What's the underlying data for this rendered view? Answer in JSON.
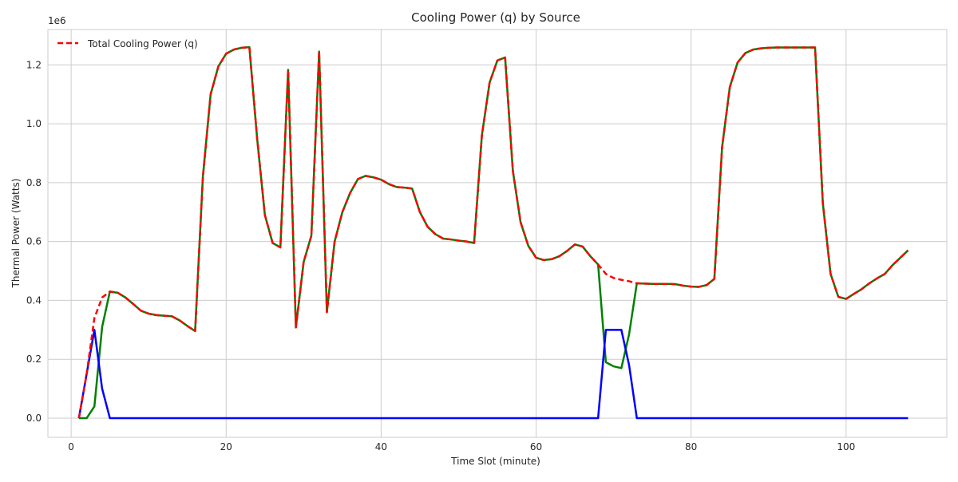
{
  "chart_data": {
    "type": "line",
    "title": "Cooling Power (q) by Source",
    "xlabel": "Time Slot (minute)",
    "ylabel": "Thermal Power (Watts)",
    "y_offset_label": "1e6",
    "xlim": [
      -3,
      113
    ],
    "ylim": [
      -65000,
      1320000
    ],
    "x_ticks": [
      0,
      20,
      40,
      60,
      80,
      100
    ],
    "x_tick_labels": [
      "0",
      "20",
      "40",
      "60",
      "80",
      "100"
    ],
    "y_ticks": [
      0,
      200000,
      400000,
      600000,
      800000,
      1000000,
      1200000
    ],
    "y_tick_labels": [
      "0.0",
      "0.2",
      "0.4",
      "0.6",
      "0.8",
      "1.0",
      "1.2"
    ],
    "grid": true,
    "legend_position": "top-left",
    "x": [
      1,
      2,
      3,
      4,
      5,
      6,
      7,
      8,
      9,
      10,
      11,
      12,
      13,
      14,
      15,
      16,
      17,
      18,
      19,
      20,
      21,
      22,
      23,
      24,
      25,
      26,
      27,
      28,
      29,
      30,
      31,
      32,
      33,
      34,
      35,
      36,
      37,
      38,
      39,
      40,
      41,
      42,
      43,
      44,
      45,
      46,
      47,
      48,
      49,
      50,
      51,
      52,
      53,
      54,
      55,
      56,
      57,
      58,
      59,
      60,
      61,
      62,
      63,
      64,
      65,
      66,
      67,
      68,
      69,
      70,
      71,
      72,
      73,
      74,
      75,
      76,
      77,
      78,
      79,
      80,
      81,
      82,
      83,
      84,
      85,
      86,
      87,
      88,
      89,
      90,
      91,
      92,
      93,
      94,
      95,
      96,
      97,
      98,
      99,
      100,
      101,
      102,
      103,
      104,
      105,
      106,
      107,
      108
    ],
    "series": [
      {
        "name": "",
        "color": "#008000",
        "style": "solid",
        "values": [
          0,
          0,
          40000,
          310000,
          430000,
          426000,
          410000,
          388000,
          365000,
          355000,
          350000,
          348000,
          346000,
          332000,
          313000,
          296000,
          820000,
          1100000,
          1195000,
          1238000,
          1252000,
          1258000,
          1260000,
          950000,
          690000,
          595000,
          580000,
          1183000,
          308000,
          530000,
          620000,
          1245000,
          360000,
          600000,
          700000,
          765000,
          812000,
          823000,
          818000,
          810000,
          795000,
          785000,
          783000,
          780000,
          700000,
          650000,
          625000,
          610000,
          607000,
          603000,
          600000,
          595000,
          960000,
          1140000,
          1215000,
          1225000,
          840000,
          665000,
          585000,
          545000,
          537000,
          540000,
          550000,
          568000,
          590000,
          583000,
          550000,
          522000,
          190000,
          176000,
          170000,
          285000,
          458000,
          457000,
          456000,
          456000,
          456000,
          455000,
          450000,
          447000,
          446000,
          452000,
          473000,
          920000,
          1125000,
          1208000,
          1240000,
          1252000,
          1256000,
          1258000,
          1259000,
          1259000,
          1259000,
          1259000,
          1259000,
          1259000,
          730000,
          490000,
          412000,
          405000,
          422000,
          438000,
          458000,
          475000,
          490000,
          520000,
          545000,
          570000
        ]
      },
      {
        "name": "",
        "color": "#0000ff",
        "style": "solid",
        "values": [
          0,
          150000,
          300000,
          100000,
          0,
          0,
          0,
          0,
          0,
          0,
          0,
          0,
          0,
          0,
          0,
          0,
          0,
          0,
          0,
          0,
          0,
          0,
          0,
          0,
          0,
          0,
          0,
          0,
          0,
          0,
          0,
          0,
          0,
          0,
          0,
          0,
          0,
          0,
          0,
          0,
          0,
          0,
          0,
          0,
          0,
          0,
          0,
          0,
          0,
          0,
          0,
          0,
          0,
          0,
          0,
          0,
          0,
          0,
          0,
          0,
          0,
          0,
          0,
          0,
          0,
          0,
          0,
          0,
          300000,
          300000,
          300000,
          180000,
          0,
          0,
          0,
          0,
          0,
          0,
          0,
          0,
          0,
          0,
          0,
          0,
          0,
          0,
          0,
          0,
          0,
          0,
          0,
          0,
          0,
          0,
          0,
          0,
          0,
          0,
          0,
          0,
          0,
          0,
          0,
          0,
          0,
          0,
          0,
          0
        ]
      },
      {
        "name": "Total Cooling Power (q)",
        "color": "#ff0000",
        "style": "dashed",
        "values": [
          0,
          150000,
          340000,
          410000,
          430000,
          426000,
          410000,
          388000,
          365000,
          355000,
          350000,
          348000,
          346000,
          332000,
          313000,
          296000,
          820000,
          1100000,
          1195000,
          1238000,
          1252000,
          1258000,
          1260000,
          950000,
          690000,
          595000,
          580000,
          1183000,
          308000,
          530000,
          620000,
          1245000,
          360000,
          600000,
          700000,
          765000,
          812000,
          823000,
          818000,
          810000,
          795000,
          785000,
          783000,
          780000,
          700000,
          650000,
          625000,
          610000,
          607000,
          603000,
          600000,
          595000,
          960000,
          1140000,
          1215000,
          1225000,
          840000,
          665000,
          585000,
          545000,
          537000,
          540000,
          550000,
          568000,
          590000,
          583000,
          550000,
          522000,
          490000,
          476000,
          470000,
          465000,
          458000,
          457000,
          456000,
          456000,
          456000,
          455000,
          450000,
          447000,
          446000,
          452000,
          473000,
          920000,
          1125000,
          1208000,
          1240000,
          1252000,
          1256000,
          1258000,
          1259000,
          1259000,
          1259000,
          1259000,
          1259000,
          1259000,
          730000,
          490000,
          412000,
          405000,
          422000,
          438000,
          458000,
          475000,
          490000,
          520000,
          545000,
          570000
        ]
      }
    ],
    "legend_entries": [
      {
        "label": "Total Cooling Power (q)",
        "color": "#ff0000",
        "style": "dashed"
      }
    ]
  }
}
